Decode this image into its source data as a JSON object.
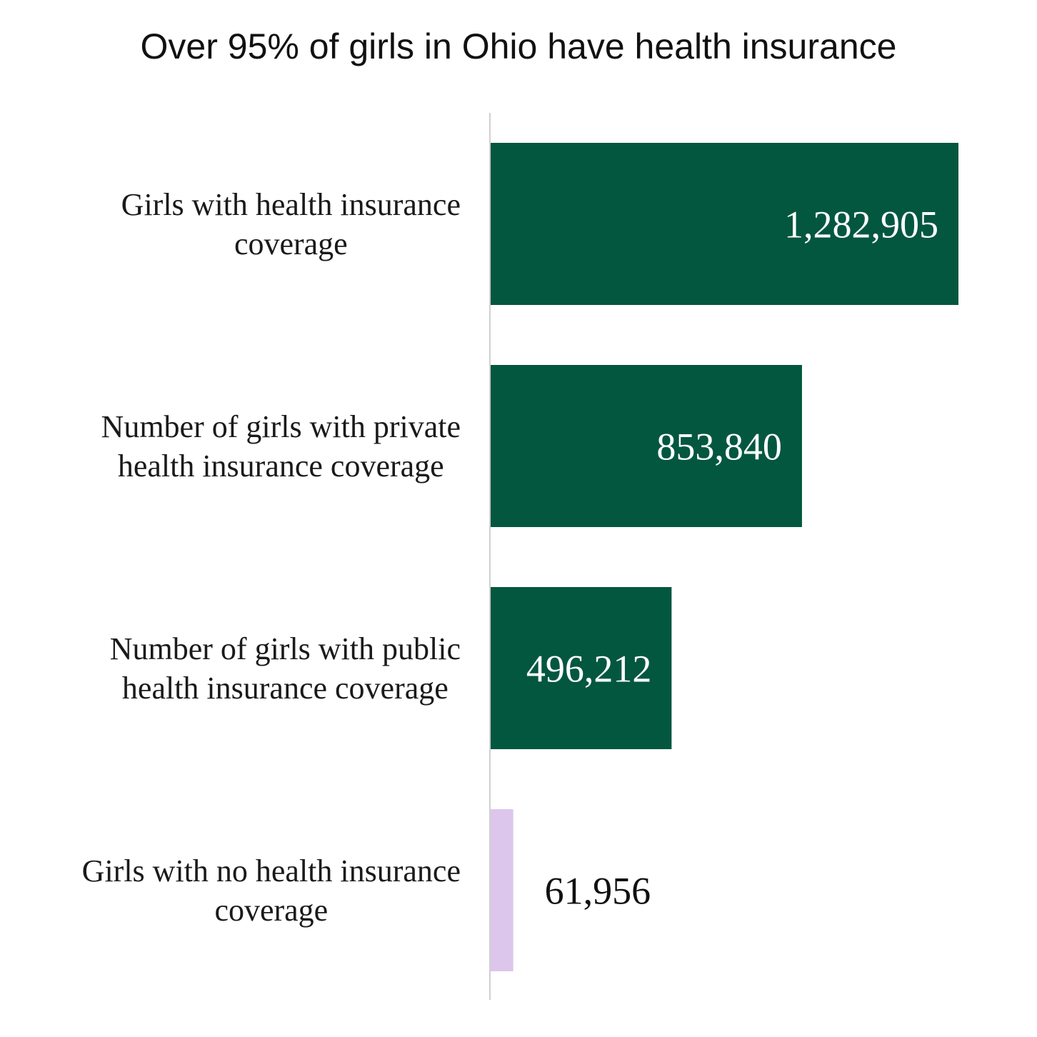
{
  "colors": {
    "bar_primary": "#03573f",
    "bar_highlight": "#dcc6ec",
    "axis_line": "#d0d0d0",
    "label_on_bar": "#ffffff",
    "label_off_bar": "#111111"
  },
  "chart_data": {
    "type": "bar",
    "orientation": "horizontal",
    "title": "Over 95% of girls in Ohio have health insurance",
    "xlabel": "",
    "ylabel": "",
    "grid": false,
    "legend": "none",
    "xlim": [
      0,
      1400000
    ],
    "categories": [
      "Girls with health insurance coverage",
      "Number of girls with private health insurance coverage",
      "Number of girls with public health insurance coverage",
      "Girls with no health insurance coverage"
    ],
    "category_lines": [
      [
        "Girls with health insurance",
        "coverage"
      ],
      [
        "Number of girls with private",
        "health insurance coverage"
      ],
      [
        "Number of girls with public",
        "health insurance coverage"
      ],
      [
        "Girls with no health insurance",
        "coverage"
      ]
    ],
    "values": [
      1282905,
      853840,
      496212,
      61956
    ],
    "value_labels": [
      "1,282,905",
      "853,840",
      "496,212",
      "61,956"
    ],
    "bar_colors": [
      "#03573f",
      "#03573f",
      "#03573f",
      "#dcc6ec"
    ]
  }
}
